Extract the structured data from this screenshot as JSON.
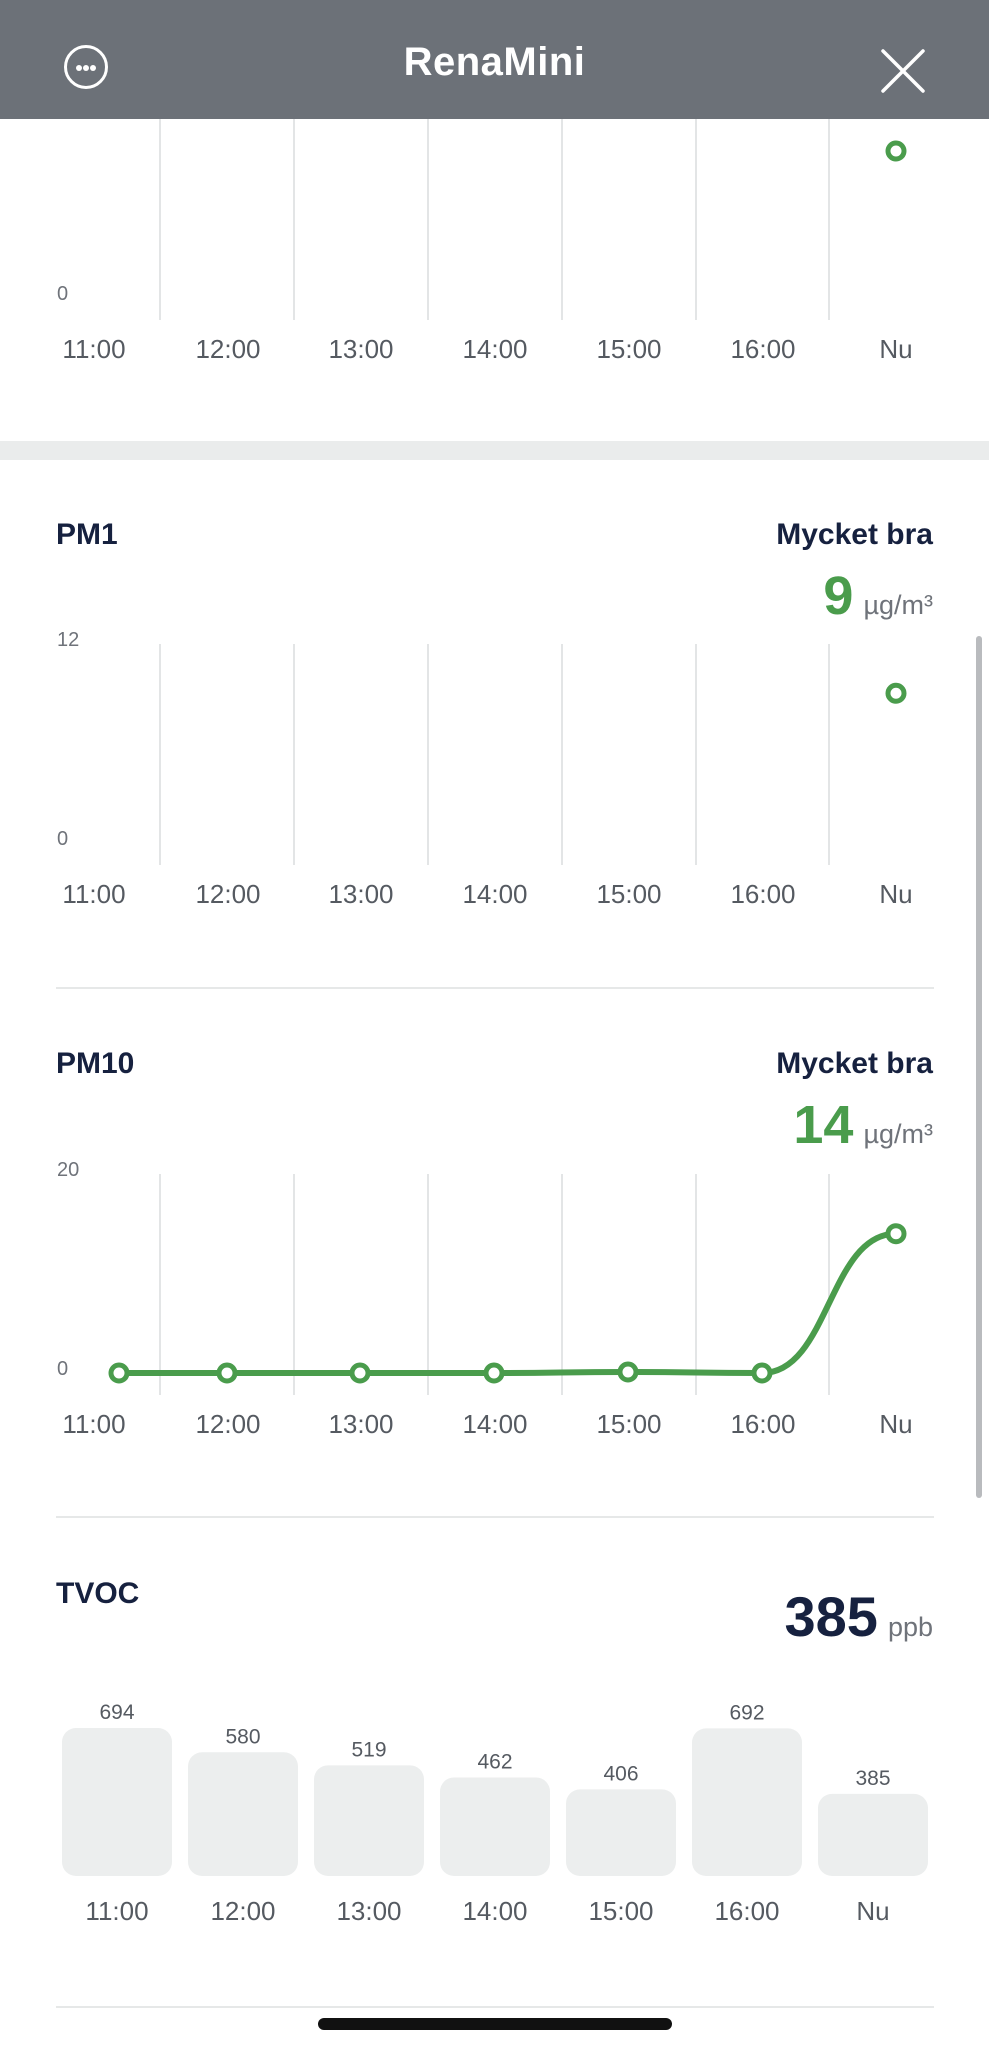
{
  "header": {
    "title": "RenaMini"
  },
  "charts": {
    "top": {
      "y_min_label": "0",
      "times": [
        "11:00",
        "12:00",
        "13:00",
        "14:00",
        "15:00",
        "16:00",
        "Nu"
      ]
    },
    "pm1": {
      "title": "PM1",
      "status": "Mycket bra",
      "value": "9",
      "unit": "µg/m³",
      "y_max_label": "12",
      "y_min_label": "0",
      "times": [
        "11:00",
        "12:00",
        "13:00",
        "14:00",
        "15:00",
        "16:00",
        "Nu"
      ]
    },
    "pm10": {
      "title": "PM10",
      "status": "Mycket bra",
      "value": "14",
      "unit": "µg/m³",
      "y_max_label": "20",
      "y_min_label": "0",
      "times": [
        "11:00",
        "12:00",
        "13:00",
        "14:00",
        "15:00",
        "16:00",
        "Nu"
      ]
    },
    "tvoc": {
      "title": "TVOC",
      "value": "385",
      "unit": "ppb",
      "times": [
        "11:00",
        "12:00",
        "13:00",
        "14:00",
        "15:00",
        "16:00",
        "Nu"
      ],
      "values": [
        "694",
        "580",
        "519",
        "462",
        "406",
        "692",
        "385"
      ]
    }
  },
  "colors": {
    "accent_green": "#4a9c4c",
    "header_gray": "#6c7178",
    "bar_gray": "#eceeee"
  },
  "chart_data": [
    {
      "type": "scatter",
      "x": [
        "11:00",
        "12:00",
        "13:00",
        "14:00",
        "15:00",
        "16:00",
        "Nu"
      ],
      "series": [
        {
          "values": [
            null,
            null,
            null,
            null,
            null,
            null,
            null
          ]
        }
      ],
      "note_visible_point": "Nu",
      "ylim": [
        0,
        null
      ]
    },
    {
      "type": "scatter",
      "title": "PM1",
      "x": [
        "11:00",
        "12:00",
        "13:00",
        "14:00",
        "15:00",
        "16:00",
        "Nu"
      ],
      "series": [
        {
          "values": [
            null,
            null,
            null,
            null,
            null,
            null,
            9
          ]
        }
      ],
      "ylim": [
        0,
        12
      ]
    },
    {
      "type": "line",
      "title": "PM10",
      "x": [
        "11:00",
        "12:00",
        "13:00",
        "14:00",
        "15:00",
        "16:00",
        "Nu"
      ],
      "series": [
        {
          "values": [
            0,
            0,
            0,
            0,
            0.1,
            0,
            14
          ]
        }
      ],
      "ylim": [
        0,
        20
      ]
    },
    {
      "type": "bar",
      "title": "TVOC",
      "categories": [
        "11:00",
        "12:00",
        "13:00",
        "14:00",
        "15:00",
        "16:00",
        "Nu"
      ],
      "values": [
        694,
        580,
        519,
        462,
        406,
        692,
        385
      ]
    }
  ]
}
